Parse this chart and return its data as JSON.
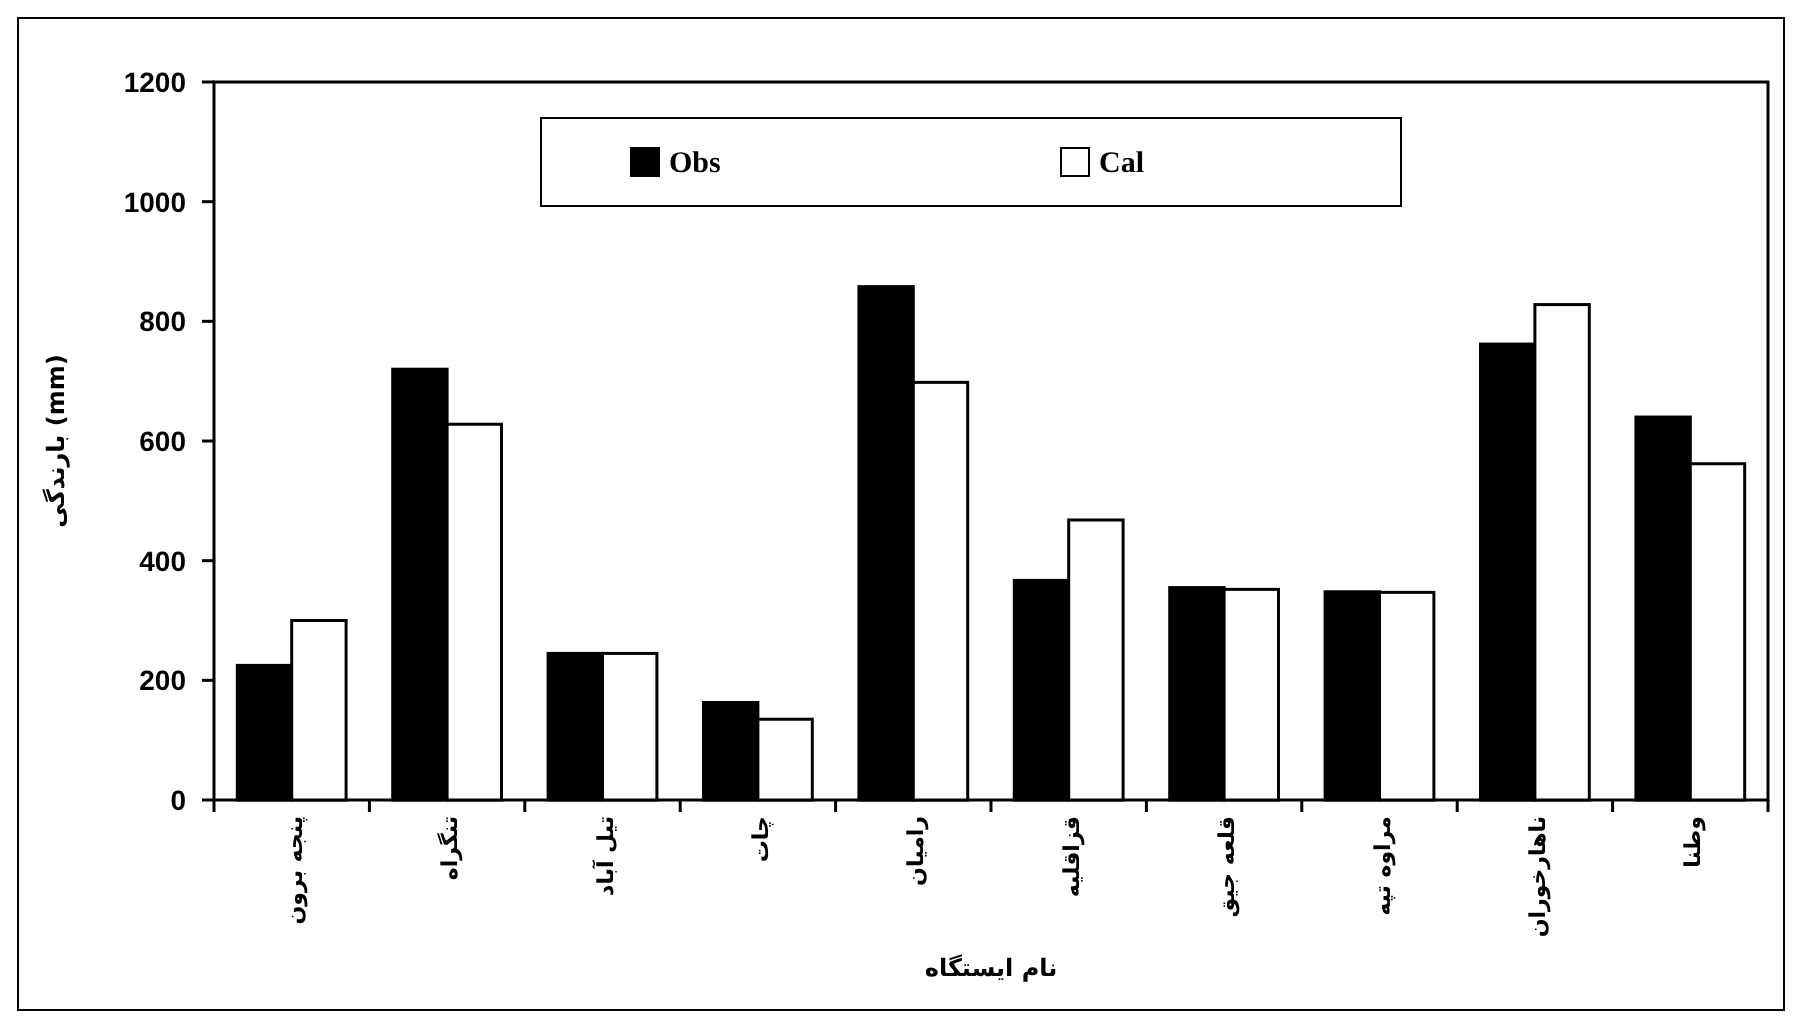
{
  "chart_data": {
    "type": "bar",
    "xlabel": "نام ایستگاه",
    "ylabel": "بارندگی (mm)",
    "categories": [
      "پنجه برون",
      "تنگراه",
      "تیل آباد",
      "چات",
      "رامیان",
      "قزاقلیه",
      "قلعه جیق",
      "مراوه تپه",
      "ناهارخوران",
      "وطنا"
    ],
    "series": [
      {
        "name": "Obs",
        "color": "#000000",
        "values": [
          225,
          720,
          245,
          163,
          858,
          367,
          355,
          348,
          762,
          640
        ]
      },
      {
        "name": "Cal",
        "color": "#ffffff",
        "values": [
          300,
          628,
          245,
          135,
          698,
          468,
          352,
          347,
          828,
          562
        ]
      }
    ],
    "ylim": [
      0,
      1200
    ],
    "yticks": [
      0,
      200,
      400,
      600,
      800,
      1000,
      1200
    ],
    "grid": false,
    "legend": "top"
  }
}
